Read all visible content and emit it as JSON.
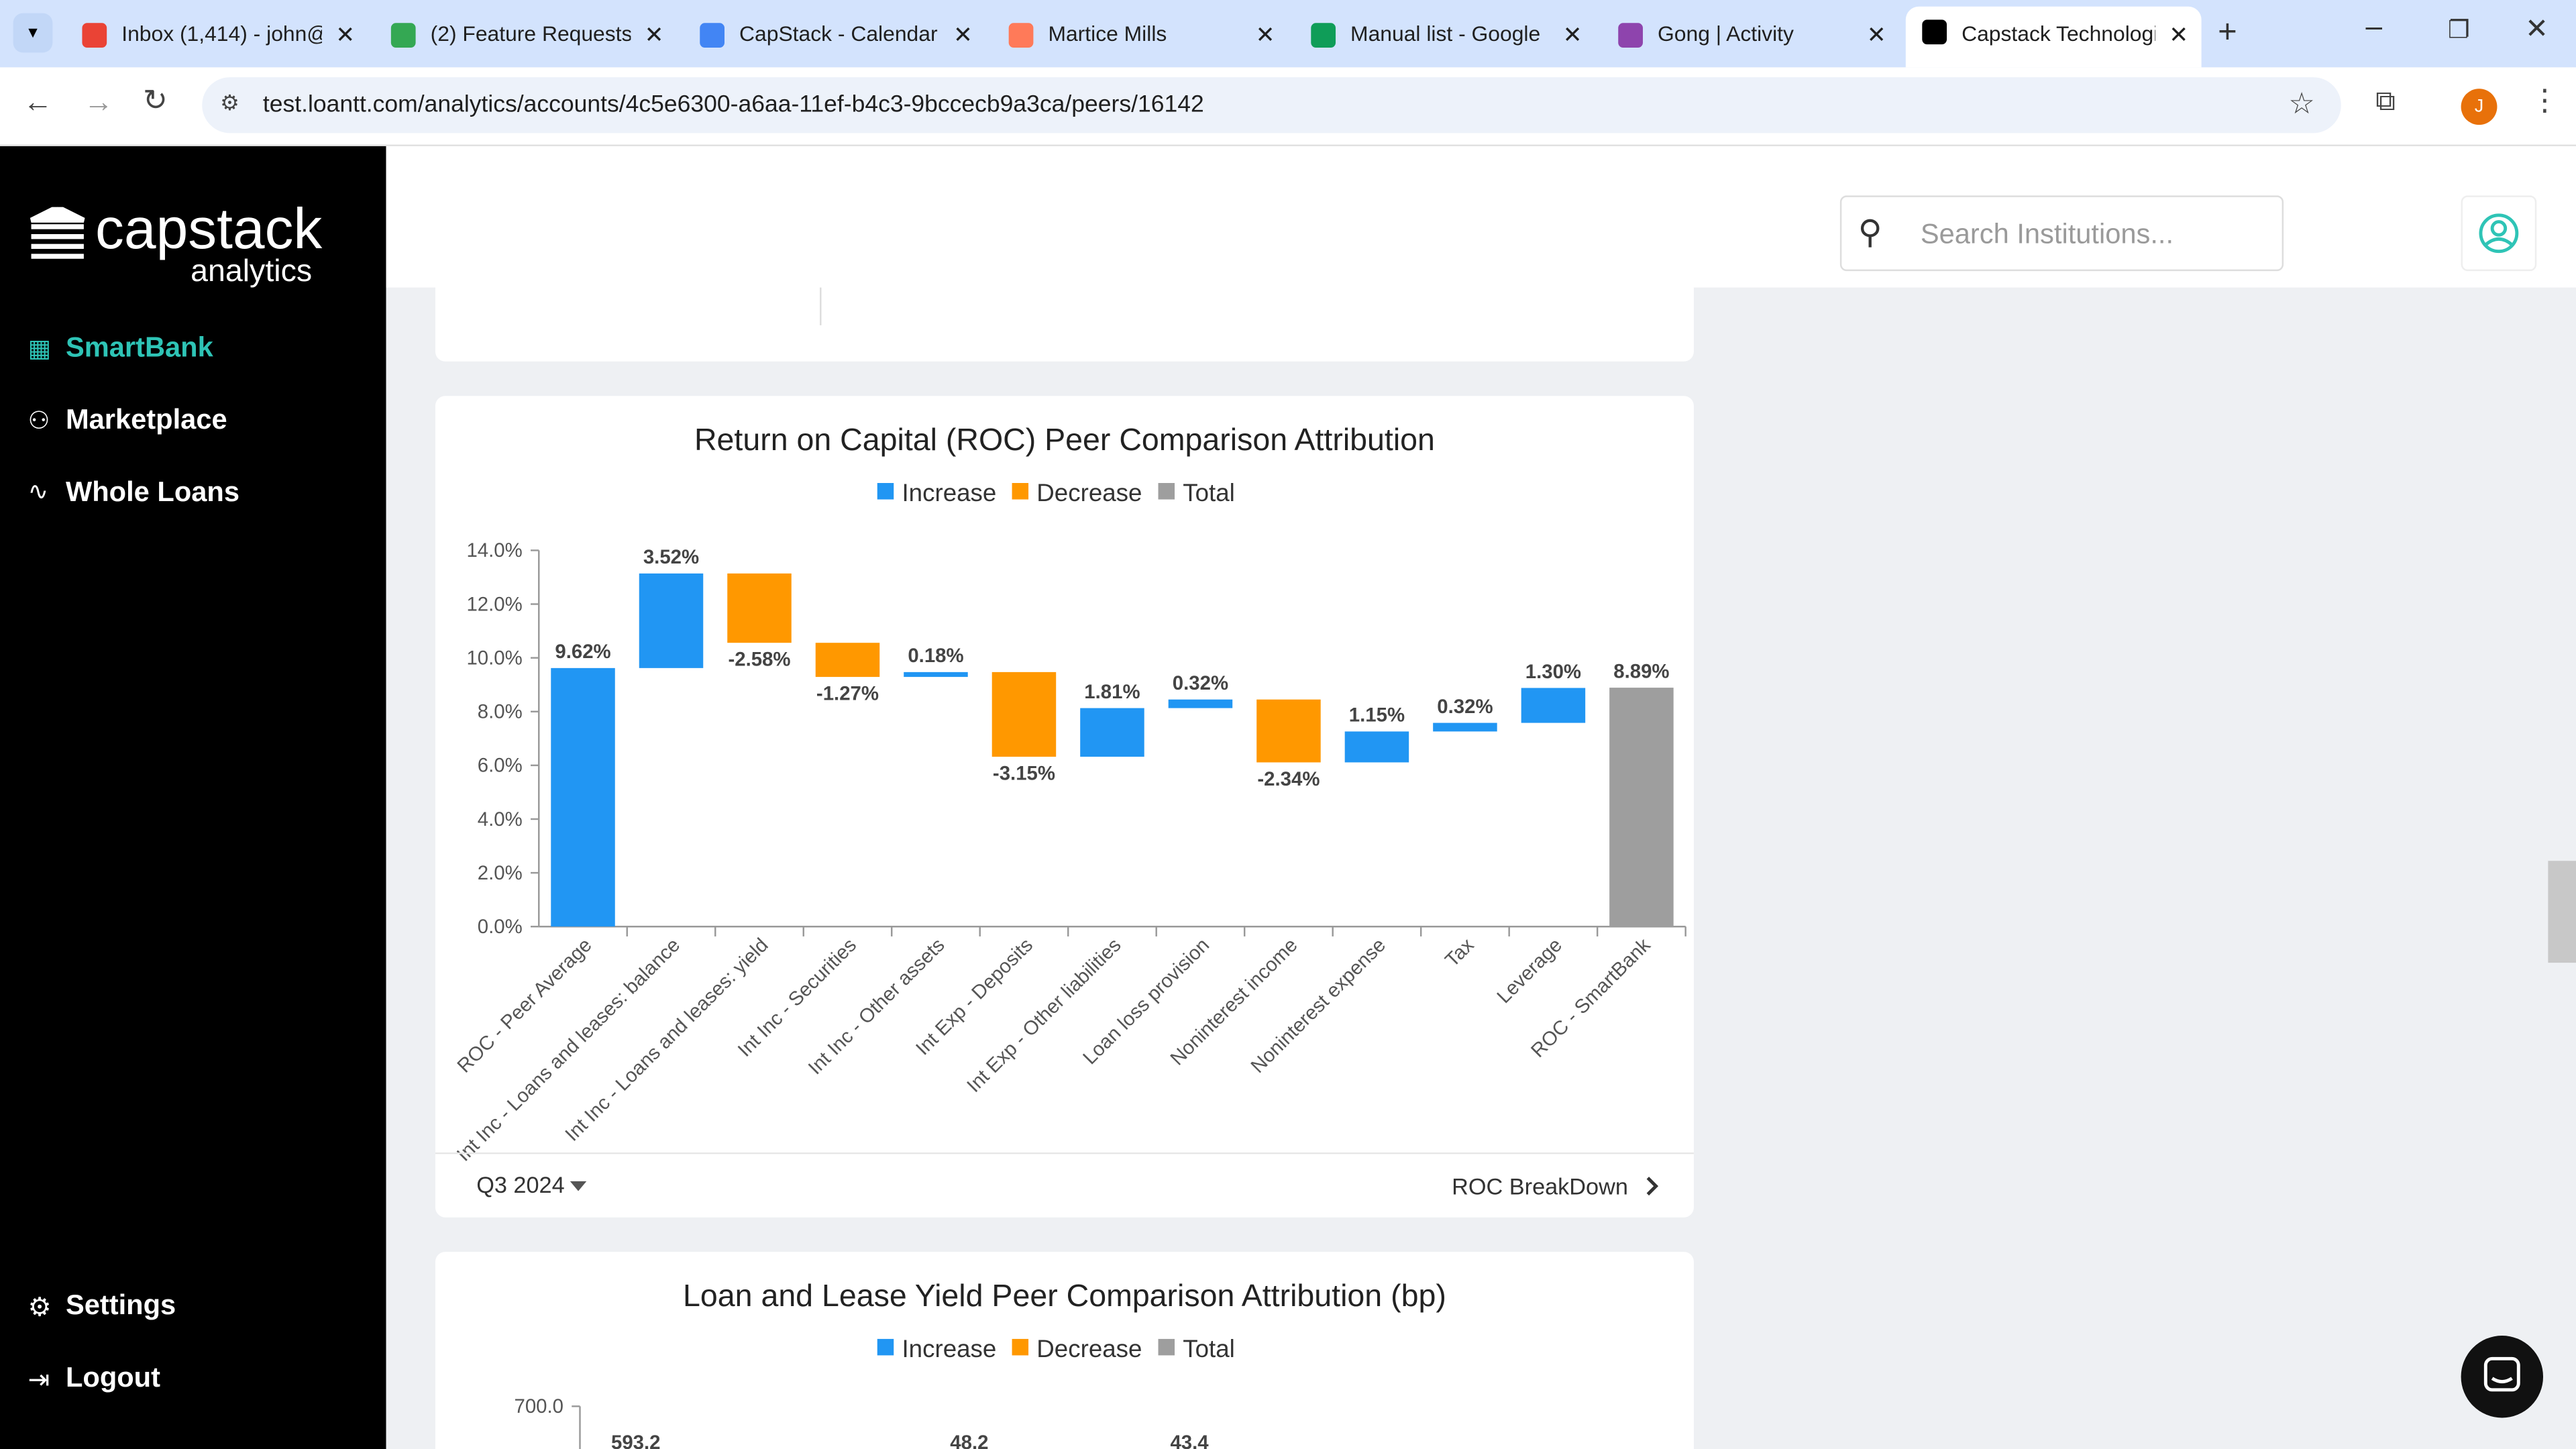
{
  "browser": {
    "tabs": [
      "Inbox (1,414) - john@",
      "(2) Feature Requests",
      "CapStack - Calendar",
      "Martice Mills",
      "Manual list - Google",
      "Gong | Activity",
      "Capstack Technologi"
    ],
    "url": "test.loantt.com/analytics/accounts/4c5e6300-a6aa-11ef-b4c3-9bccecb9a3ca/peers/16142",
    "profile_initial": "J"
  },
  "sidebar": {
    "logo": "capstack",
    "logo_sub": "analytics",
    "nav": [
      "SmartBank",
      "Marketplace",
      "Whole Loans"
    ],
    "bottom": [
      "Settings",
      "Logout"
    ]
  },
  "header": {
    "search_placeholder": "Search Institutions..."
  },
  "footer": {
    "period": "Q3 2024",
    "link": "ROC BreakDown"
  },
  "chart_data": [
    {
      "type": "waterfall",
      "title": "Return on Capital (ROC) Peer Comparison Attribution",
      "legend": [
        {
          "name": "Increase",
          "color": "#2196f3"
        },
        {
          "name": "Decrease",
          "color": "#ff9800"
        },
        {
          "name": "Total",
          "color": "#9e9e9e"
        }
      ],
      "categories": [
        "ROC - Peer Average",
        "Int Inc - Loans and leases: balance",
        "Int Inc - Loans and leases: yield",
        "Int Inc - Securities",
        "Int Inc - Other assets",
        "Int Exp - Deposits",
        "Int Exp - Other liabilities",
        "Loan loss provision",
        "Noninterest income",
        "Noninterest expense",
        "Tax",
        "Leverage",
        "ROC - SmartBank"
      ],
      "values": [
        9.62,
        3.52,
        -2.58,
        -1.27,
        0.18,
        -3.15,
        1.81,
        0.32,
        -2.34,
        1.15,
        0.32,
        1.3,
        8.89
      ],
      "value_labels": [
        "9.62%",
        "3.52%",
        "-2.58%",
        "-1.27%",
        "0.18%",
        "-3.15%",
        "1.81%",
        "0.32%",
        "-2.34%",
        "1.15%",
        "0.32%",
        "1.30%",
        "8.89%"
      ],
      "measures": [
        "relative",
        "relative",
        "relative",
        "relative",
        "relative",
        "relative",
        "relative",
        "relative",
        "relative",
        "relative",
        "relative",
        "relative",
        "total"
      ],
      "ylim": [
        0,
        14
      ],
      "yticks": [
        {
          "value": 0,
          "label": "0.0%"
        },
        {
          "value": 2,
          "label": "2.0%"
        },
        {
          "value": 4,
          "label": "4.0%"
        },
        {
          "value": 6,
          "label": "6.0%"
        },
        {
          "value": 8,
          "label": "8.0%"
        },
        {
          "value": 10,
          "label": "10.0%"
        },
        {
          "value": 12,
          "label": "12.0%"
        },
        {
          "value": 14,
          "label": "14.0%"
        }
      ]
    },
    {
      "type": "waterfall",
      "title": "Loan and Lease Yield Peer Comparison Attribution (bp)",
      "legend": [
        {
          "name": "Increase",
          "color": "#2196f3"
        },
        {
          "name": "Decrease",
          "color": "#ff9800"
        },
        {
          "name": "Total",
          "color": "#9e9e9e"
        }
      ],
      "values": [
        593.2,
        48.2,
        43.4
      ],
      "yticks": [
        {
          "value": 700,
          "label": "700.0"
        }
      ]
    }
  ]
}
